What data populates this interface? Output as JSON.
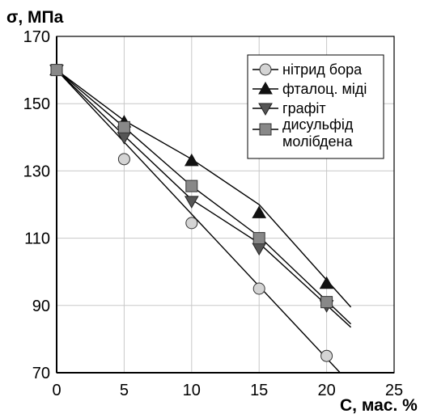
{
  "chart_data": {
    "type": "line",
    "ylabel": "σ, МПа",
    "xlabel": "С, мас. %",
    "xlim": [
      0,
      25
    ],
    "ylim": [
      70,
      170
    ],
    "x_ticks": [
      "0",
      "5",
      "10",
      "15",
      "20",
      "25"
    ],
    "y_ticks": [
      "70",
      "90",
      "110",
      "130",
      "150",
      "170"
    ],
    "grid": true,
    "legend_position": "top-right",
    "x": [
      0,
      5,
      10,
      15,
      20
    ],
    "series": [
      {
        "name": "нітрид бора",
        "marker": "circle",
        "marker_fill": "#d4d4d4",
        "values": [
          160,
          133.5,
          114.5,
          95,
          75
        ],
        "trend_line": [
          [
            0,
            160
          ],
          [
            21,
            70
          ]
        ]
      },
      {
        "name": "фталоц. міді",
        "marker": "triangle-up",
        "marker_fill": "#111111",
        "values": [
          160,
          144.5,
          133,
          117.5,
          96.5
        ],
        "trend_line": [
          [
            0,
            160
          ],
          [
            5,
            145
          ],
          [
            10,
            133.5
          ],
          [
            15,
            120
          ],
          [
            21.8,
            89.5
          ]
        ]
      },
      {
        "name": "графіт",
        "marker": "triangle-down",
        "marker_fill": "#555555",
        "values": [
          160,
          140,
          121,
          107,
          90
        ],
        "trend_line": [
          [
            0,
            160
          ],
          [
            5,
            140.5
          ],
          [
            10,
            121.5
          ],
          [
            15,
            108.5
          ],
          [
            21.8,
            83.5
          ]
        ]
      },
      {
        "name_lines": [
          "дисульфід",
          "молібдена"
        ],
        "marker": "square",
        "marker_fill": "#888888",
        "values": [
          160,
          143,
          125.5,
          110,
          91
        ],
        "trend_line": [
          [
            0,
            160
          ],
          [
            5,
            143
          ],
          [
            10,
            125.5
          ],
          [
            15,
            110.5
          ],
          [
            21.8,
            84.5
          ]
        ]
      }
    ]
  }
}
